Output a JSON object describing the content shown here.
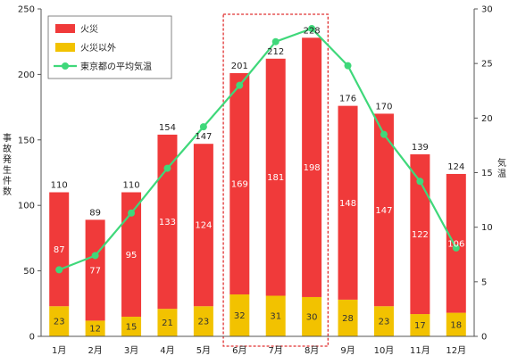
{
  "chart_data": {
    "type": "bar",
    "stacked": true,
    "categories": [
      "1月",
      "2月",
      "3月",
      "4月",
      "5月",
      "6月",
      "7月",
      "8月",
      "9月",
      "10月",
      "11月",
      "12月"
    ],
    "series": [
      {
        "name": "火災",
        "color": "#f03a3a",
        "values": [
          87,
          77,
          95,
          133,
          124,
          169,
          181,
          198,
          148,
          147,
          122,
          106
        ]
      },
      {
        "name": "火災以外",
        "color": "#f2c200",
        "values": [
          23,
          12,
          15,
          21,
          23,
          32,
          31,
          30,
          28,
          23,
          17,
          18
        ]
      }
    ],
    "totals": [
      110,
      89,
      110,
      154,
      147,
      201,
      212,
      228,
      176,
      170,
      139,
      124
    ],
    "line_series": {
      "name": "東京都の平均気温",
      "color": "#3fd87a",
      "axis": "right",
      "values": [
        6.1,
        7.4,
        11.3,
        15.4,
        19.2,
        23.0,
        27.0,
        28.2,
        24.8,
        18.5,
        14.2,
        8.1
      ]
    },
    "ylabel": "事故発生件数",
    "y2label": "気温",
    "ylim": [
      0,
      250
    ],
    "yticks": [
      0,
      50,
      100,
      150,
      200,
      250
    ],
    "y2lim": [
      0,
      30
    ],
    "y2ticks": [
      0,
      5,
      10,
      15,
      20,
      25,
      30
    ],
    "legend_position": "top-left",
    "highlight_categories": [
      "6月",
      "7月",
      "8月"
    ],
    "highlight_color": "#e03030"
  }
}
